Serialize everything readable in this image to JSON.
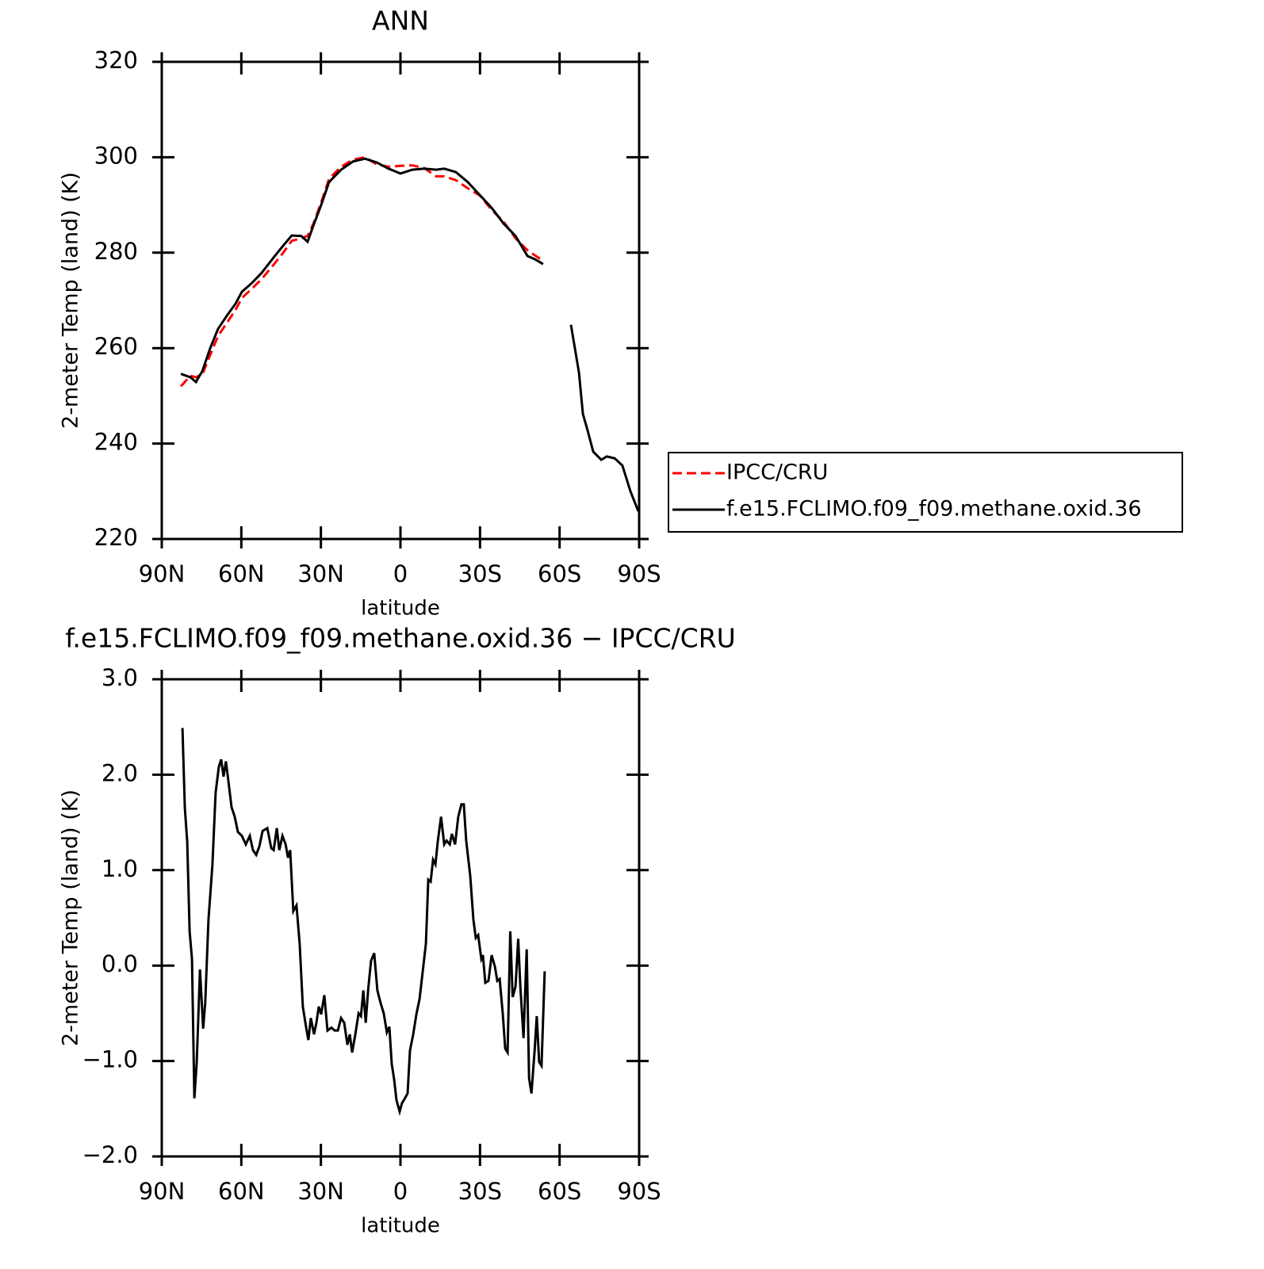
{
  "chart_data": [
    {
      "type": "line",
      "title": "ANN",
      "xlabel": "latitude",
      "ylabel": "2-meter Temp (land) (K)",
      "x": [
        82.8,
        79.2,
        77.1,
        74.7,
        71.8,
        68.8,
        65.2,
        62.2,
        59.8,
        55.9,
        52.3,
        47.8,
        44.2,
        41,
        37.4,
        35,
        32.9,
        29.9,
        26.9,
        22.4,
        17.9,
        13.4,
        8.9,
        4.5,
        0,
        -4.5,
        -9,
        -13.5,
        -16.5,
        -20.9,
        -25.4,
        -29.9,
        -34.4,
        -38.9,
        -43.4,
        -47.9,
        -50.8,
        -53.8,
        -59,
        -64.3,
        -67.3,
        -68.8,
        -70.3,
        -72.7,
        -75.7,
        -77.8,
        -80.8,
        -83.7,
        -86.7,
        -89.7
      ],
      "series": [
        {
          "name": "IPCC/CRU",
          "color": "#ff0000",
          "dash": "dashed",
          "values": [
            252.0,
            254.2,
            253.9,
            254.5,
            258.5,
            262.5,
            265.5,
            268,
            270.5,
            272.5,
            274.5,
            277.5,
            280,
            282.5,
            283,
            283.5,
            286,
            290.5,
            295.5,
            298,
            299.5,
            300,
            298.5,
            298,
            298.2,
            298.3,
            297.7,
            296,
            296,
            295.2,
            293.5,
            292,
            289,
            286.5,
            283,
            280.5,
            279.4,
            278.3,
            null,
            null,
            null,
            null,
            null,
            null,
            null,
            null,
            null,
            null,
            null,
            null
          ]
        },
        {
          "name": "f.e15.FCLIMO.f09_f09.methane.oxid.36",
          "color": "#000000",
          "dash": "solid",
          "values": [
            254.6,
            253.9,
            252.9,
            255.2,
            259.9,
            264,
            267,
            269.3,
            271.8,
            273.7,
            275.8,
            279,
            281.5,
            283.6,
            283.5,
            282.3,
            285.6,
            290,
            294.8,
            297.4,
            299.1,
            299.7,
            298.9,
            297.6,
            296.6,
            297.4,
            297.6,
            297.4,
            297.6,
            296.9,
            294.8,
            292.1,
            289.4,
            286.1,
            283.5,
            279.3,
            278.6,
            277.6,
            null,
            264.9,
            254.9,
            246.2,
            243.3,
            238.3,
            236.6,
            237.3,
            236.9,
            235.4,
            230,
            225.8
          ]
        }
      ],
      "xlim": [
        90,
        -90
      ],
      "xticks": [
        {
          "value": 90,
          "label": "90N"
        },
        {
          "value": 60,
          "label": "60N"
        },
        {
          "value": 30,
          "label": "30N"
        },
        0,
        {
          "value": -30,
          "label": "30S"
        },
        {
          "value": -60,
          "label": "60S"
        },
        {
          "value": -90,
          "label": "90S"
        }
      ],
      "ylim": [
        220,
        320
      ],
      "yticks": [
        220,
        240,
        260,
        280,
        300,
        320
      ],
      "legend": "right"
    },
    {
      "type": "line",
      "title": "f.e15.FCLIMO.f09_f09.methane.oxid.36 − IPCC/CRU",
      "xlabel": "latitude",
      "ylabel": "2-meter Temp (land) (K)",
      "x": [
        82.2,
        81.3,
        80.4,
        79.5,
        78.6,
        77.7,
        76.8,
        75.6,
        74.4,
        73.6,
        72.4,
        70.9,
        69.7,
        68.5,
        67.6,
        66.7,
        65.8,
        64.9,
        63.7,
        62.5,
        61.3,
        59.8,
        58.3,
        56.8,
        55.6,
        54.4,
        53.2,
        52.0,
        50.2,
        48.7,
        47.8,
        46.6,
        45.7,
        44.5,
        43.3,
        42.4,
        41.6,
        40.4,
        39.2,
        38.0,
        36.8,
        35.6,
        34.7,
        33.8,
        32.6,
        31.7,
        30.8,
        29.9,
        28.7,
        27.5,
        26.0,
        24.8,
        23.6,
        22.4,
        21.2,
        20.0,
        19.1,
        18.2,
        17.0,
        15.8,
        14.9,
        14.0,
        13.1,
        12.2,
        11.1,
        9.9,
        8.7,
        7.5,
        6.3,
        5.1,
        4.2,
        3.3,
        2.4,
        1.5,
        0.3,
        -0.6,
        -1.5,
        -2.7,
        -3.6,
        -4.8,
        -6.0,
        -7.2,
        -8.4,
        -9.6,
        -10.5,
        -11.4,
        -12.3,
        -13.2,
        -14.1,
        -15.3,
        -16.5,
        -17.4,
        -18.6,
        -19.4,
        -20.6,
        -21.8,
        -23.0,
        -23.9,
        -24.8,
        -26.3,
        -27.5,
        -28.4,
        -29.3,
        -30.5,
        -31.1,
        -32.0,
        -33.2,
        -34.4,
        -35.6,
        -36.5,
        -37.4,
        -38.6,
        -39.5,
        -40.4,
        -41.4,
        -42.3,
        -43.4,
        -44.4,
        -45.2,
        -46.4,
        -47.6,
        -48.5,
        -49.4,
        -50.6,
        -51.4,
        -52.3,
        -53.2,
        -54.4
      ],
      "series": [
        {
          "color": "#000000",
          "dash": "solid",
          "values": [
            2.49,
            1.65,
            1.3,
            0.36,
            0.07,
            -1.39,
            -1.01,
            -0.04,
            -0.66,
            -0.39,
            0.48,
            1.06,
            1.81,
            2.08,
            2.16,
            1.98,
            2.14,
            1.94,
            1.66,
            1.56,
            1.4,
            1.36,
            1.27,
            1.36,
            1.21,
            1.16,
            1.25,
            1.41,
            1.44,
            1.23,
            1.21,
            1.44,
            1.21,
            1.36,
            1.27,
            1.13,
            1.21,
            0.57,
            0.63,
            0.23,
            -0.43,
            -0.64,
            -0.78,
            -0.55,
            -0.72,
            -0.6,
            -0.43,
            -0.51,
            -0.31,
            -0.68,
            -0.65,
            -0.68,
            -0.68,
            -0.55,
            -0.6,
            -0.83,
            -0.72,
            -0.91,
            -0.72,
            -0.5,
            -0.53,
            -0.26,
            -0.6,
            -0.26,
            0.05,
            0.13,
            -0.26,
            -0.39,
            -0.5,
            -0.7,
            -0.64,
            -1.03,
            -1.19,
            -1.41,
            -1.53,
            -1.44,
            -1.4,
            -1.34,
            -0.89,
            -0.72,
            -0.51,
            -0.35,
            -0.06,
            0.23,
            0.9,
            0.88,
            1.11,
            1.06,
            1.31,
            1.56,
            1.27,
            1.31,
            1.27,
            1.38,
            1.27,
            1.56,
            1.69,
            1.69,
            1.31,
            0.94,
            0.48,
            0.29,
            0.32,
            0.07,
            0.11,
            -0.18,
            -0.16,
            0.11,
            -0.01,
            -0.16,
            -0.14,
            -0.51,
            -0.87,
            -0.91,
            0.36,
            -0.33,
            -0.22,
            0.28,
            -0.22,
            -0.76,
            0.17,
            -1.18,
            -1.34,
            -0.89,
            -0.53,
            -1.01,
            -1.05,
            -0.06
          ]
        }
      ],
      "xlim": [
        90,
        -90
      ],
      "xticks": [
        {
          "value": 90,
          "label": "90N"
        },
        {
          "value": 60,
          "label": "60N"
        },
        {
          "value": 30,
          "label": "30N"
        },
        0,
        {
          "value": -30,
          "label": "30S"
        },
        {
          "value": -60,
          "label": "60S"
        },
        {
          "value": -90,
          "label": "90S"
        }
      ],
      "ylim": [
        -2,
        3
      ],
      "yticks": [
        {
          "value": -2,
          "label": "−2.0"
        },
        {
          "value": -1,
          "label": "−1.0"
        },
        {
          "value": 0,
          "label": "0.0"
        },
        {
          "value": 1,
          "label": "1.0"
        },
        {
          "value": 2,
          "label": "2.0"
        },
        {
          "value": 3,
          "label": "3.0"
        }
      ]
    }
  ]
}
